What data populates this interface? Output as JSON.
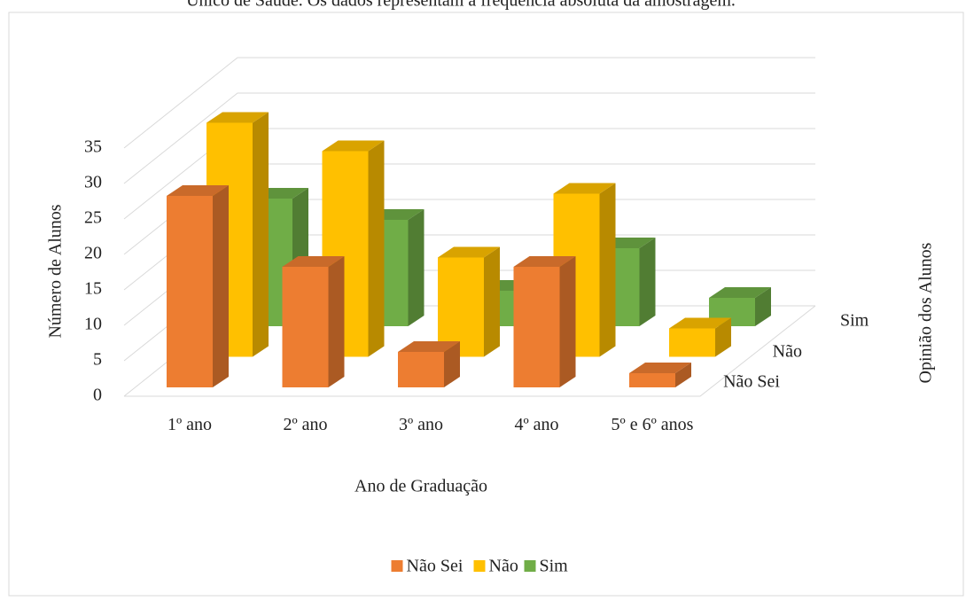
{
  "caption": "Único de Saúde. Os dados representam a frequência absoluta da amostragem.",
  "chart_data": {
    "type": "bar3d",
    "x_label": "Ano de Graduação",
    "y_label": "Número de Alunos",
    "z_label": "Opinião dos Alunos",
    "categories": [
      "1º ano",
      "2º ano",
      "3º ano",
      "4º ano",
      "5º e 6º anos"
    ],
    "series": [
      {
        "name": "Não Sei",
        "color": "#ed7d31",
        "values": [
          27,
          17,
          5,
          17,
          2
        ]
      },
      {
        "name": "Não",
        "color": "#ffc000",
        "values": [
          33,
          29,
          14,
          23,
          4
        ]
      },
      {
        "name": "Sim",
        "color": "#70ad47",
        "values": [
          18,
          15,
          5,
          11,
          4
        ]
      }
    ],
    "ylim": [
      0,
      35
    ],
    "yticks": [
      0,
      5,
      10,
      15,
      20,
      25,
      30,
      35
    ],
    "grid": true,
    "legend": "bottom"
  }
}
